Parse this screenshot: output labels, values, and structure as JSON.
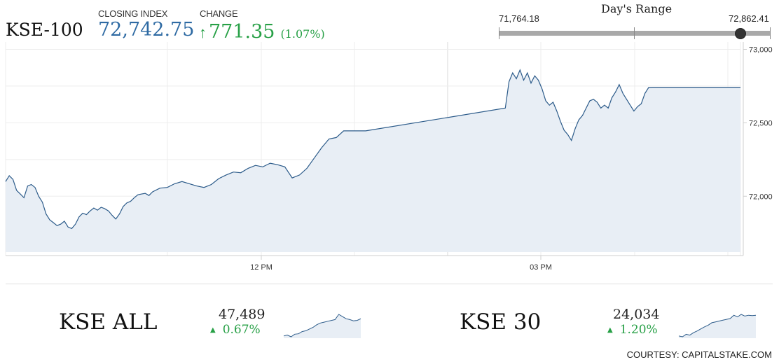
{
  "header": {
    "index_name": "KSE-100",
    "closing_label": "CLOSING INDEX",
    "closing_value": "72,742.75",
    "change_label": "CHANGE",
    "change_arrow_icon": "arrow-up-icon",
    "change_value": "771.35",
    "change_pct": "(1.07%)"
  },
  "days_range": {
    "title": "Day's Range",
    "low": "71,764.18",
    "high": "72,862.41",
    "current_fraction": 0.89
  },
  "colors": {
    "line": "#2c5b8a",
    "fill": "#e8eef5",
    "up": "#27a046",
    "value_blue": "#2e6aa3"
  },
  "chart_data": {
    "type": "area",
    "title": "",
    "xlabel": "",
    "ylabel": "",
    "x_tick_labels": [
      "12 PM",
      "03 PM"
    ],
    "y_tick_labels": [
      "72,000",
      "72,500",
      "73,000"
    ],
    "ylim": [
      71620,
      73050
    ],
    "grid": true,
    "series": [
      {
        "values": [
          72100,
          72140,
          72115,
          72040,
          72015,
          71990,
          72070,
          72080,
          72060,
          72000,
          71960,
          71880,
          71840,
          71820,
          71800,
          71810,
          71830,
          71790,
          71780,
          71810,
          71860,
          71885,
          71875,
          71900,
          71920,
          71905,
          71925,
          71915,
          71900,
          71870,
          71845,
          71880,
          71930,
          71955,
          71965,
          71990,
          72010,
          72015,
          72020,
          72005,
          72030,
          72055,
          72060,
          72085,
          72100,
          72085,
          72070,
          72060,
          72080,
          72120,
          72145,
          72165,
          72160,
          72190,
          72210,
          72200,
          72225,
          72215,
          72200,
          72125,
          72145,
          72190,
          72260,
          72330,
          72390,
          72400,
          72445,
          72445,
          72600,
          72780,
          72840,
          72800,
          72860,
          72790,
          72840,
          72770,
          72820,
          72790,
          72730,
          72650,
          72620,
          72640,
          72580,
          72510,
          72450,
          72420,
          72380,
          72460,
          72520,
          72550,
          72600,
          72650,
          72660,
          72640,
          72600,
          72620,
          72600,
          72670,
          72710,
          72760,
          72700,
          72660,
          72620,
          72580,
          72610,
          72630,
          72700,
          72740,
          72742,
          72742,
          72742
        ],
        "x": [
          0.0,
          0.5,
          1.0,
          1.5,
          2.0,
          2.5,
          3.0,
          3.5,
          4.0,
          4.5,
          5.0,
          5.5,
          6.0,
          6.5,
          7.0,
          7.5,
          8.0,
          8.5,
          9.0,
          9.5,
          10.0,
          10.5,
          11.0,
          11.5,
          12.0,
          12.5,
          13.0,
          13.5,
          14.0,
          14.5,
          15.0,
          15.5,
          16.0,
          16.5,
          17.0,
          17.5,
          18.0,
          18.5,
          19.0,
          19.5,
          20.0,
          21.0,
          22.0,
          23.0,
          24.0,
          25.0,
          26.0,
          27.0,
          28.0,
          29.0,
          30.0,
          31.0,
          32.0,
          33.0,
          34.0,
          35.0,
          36.0,
          37.0,
          38.0,
          39.0,
          40.0,
          41.0,
          42.0,
          43.0,
          44.0,
          45.0,
          46.0,
          49.0,
          68.0,
          68.5,
          69.0,
          69.5,
          70.0,
          70.5,
          71.0,
          71.5,
          72.0,
          72.5,
          73.0,
          73.5,
          74.0,
          74.5,
          75.0,
          75.5,
          76.0,
          76.5,
          77.0,
          77.5,
          78.0,
          78.5,
          79.0,
          79.5,
          80.0,
          80.5,
          81.0,
          81.5,
          82.0,
          82.5,
          83.0,
          83.5,
          84.0,
          84.5,
          85.0,
          85.5,
          86.0,
          86.5,
          87.0,
          87.5,
          88.0,
          95.0,
          100.0
        ]
      }
    ]
  },
  "mini_cards": [
    {
      "name": "KSE ALL",
      "value": "47,489",
      "change": "0.67%",
      "change_icon": "triangle-up-icon",
      "spark": [
        10,
        12,
        8,
        14,
        15,
        20,
        22,
        26,
        30,
        36,
        40,
        42,
        44,
        46,
        48,
        60,
        55,
        50,
        48,
        45,
        46,
        50
      ]
    },
    {
      "name": "KSE 30",
      "value": "24,034",
      "change": "1.20%",
      "change_icon": "triangle-up-icon",
      "spark": [
        8,
        6,
        12,
        10,
        16,
        20,
        25,
        30,
        34,
        40,
        42,
        44,
        46,
        48,
        50,
        58,
        54,
        60,
        56,
        58,
        57,
        58
      ]
    }
  ],
  "footer": {
    "courtesy": "COURTESY: CAPITALSTAKE.COM"
  }
}
